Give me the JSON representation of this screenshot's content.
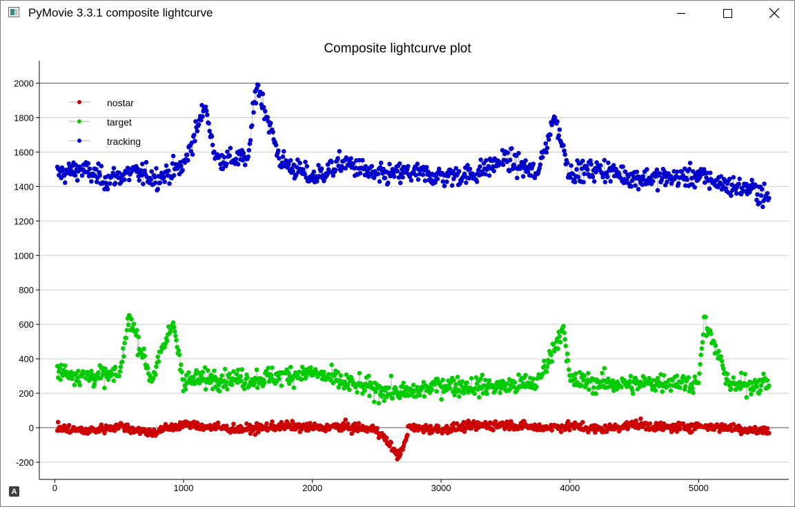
{
  "window": {
    "title": "PyMovie 3.3.1 composite lightcurve"
  },
  "corner_button": {
    "label": "A"
  },
  "chart_data": {
    "type": "scatter",
    "title": "Composite lightcurve plot",
    "xlabel": "",
    "ylabel": "",
    "xlim": [
      -120,
      5700
    ],
    "ylim": [
      -300,
      2130
    ],
    "x_ticks": [
      0,
      1000,
      2000,
      3000,
      4000,
      5000
    ],
    "y_ticks": [
      -200,
      0,
      200,
      400,
      600,
      800,
      1000,
      1200,
      1400,
      1600,
      1800,
      2000
    ],
    "grid": true,
    "legend_position": "top-left",
    "point_count": 5550,
    "series": [
      {
        "name": "nostar",
        "color": "#cc0000",
        "x": [
          0,
          250,
          500,
          750,
          1000,
          1250,
          1500,
          1750,
          2000,
          2250,
          2500,
          2680,
          2750,
          3000,
          3250,
          3500,
          3750,
          4000,
          4250,
          4500,
          4750,
          5000,
          5250,
          5500
        ],
        "values": [
          0,
          -20,
          10,
          -30,
          20,
          0,
          -10,
          10,
          0,
          5,
          -10,
          -170,
          0,
          -10,
          10,
          20,
          0,
          10,
          -10,
          20,
          0,
          10,
          0,
          -20
        ]
      },
      {
        "name": "target",
        "color": "#00cc00",
        "x": [
          0,
          250,
          500,
          580,
          750,
          920,
          1000,
          1250,
          1500,
          1750,
          2000,
          2250,
          2500,
          2750,
          3000,
          3250,
          3500,
          3750,
          3950,
          4000,
          4250,
          4500,
          4750,
          5000,
          5040,
          5250,
          5500
        ],
        "values": [
          330,
          300,
          300,
          650,
          280,
          610,
          270,
          290,
          280,
          300,
          320,
          260,
          220,
          200,
          250,
          240,
          240,
          260,
          590,
          270,
          260,
          250,
          270,
          260,
          620,
          240,
          260
        ]
      },
      {
        "name": "tracking",
        "color": "#0000cc",
        "x": [
          0,
          200,
          400,
          600,
          800,
          1000,
          1170,
          1250,
          1500,
          1570,
          1750,
          2000,
          2250,
          2500,
          2750,
          3000,
          3250,
          3500,
          3750,
          3880,
          4000,
          4250,
          4500,
          4750,
          5000,
          5250,
          5450,
          5550
        ],
        "values": [
          1470,
          1500,
          1440,
          1480,
          1450,
          1520,
          1870,
          1560,
          1560,
          2000,
          1550,
          1450,
          1540,
          1460,
          1480,
          1460,
          1470,
          1560,
          1470,
          1810,
          1480,
          1500,
          1450,
          1450,
          1460,
          1400,
          1380,
          1320
        ]
      }
    ]
  }
}
